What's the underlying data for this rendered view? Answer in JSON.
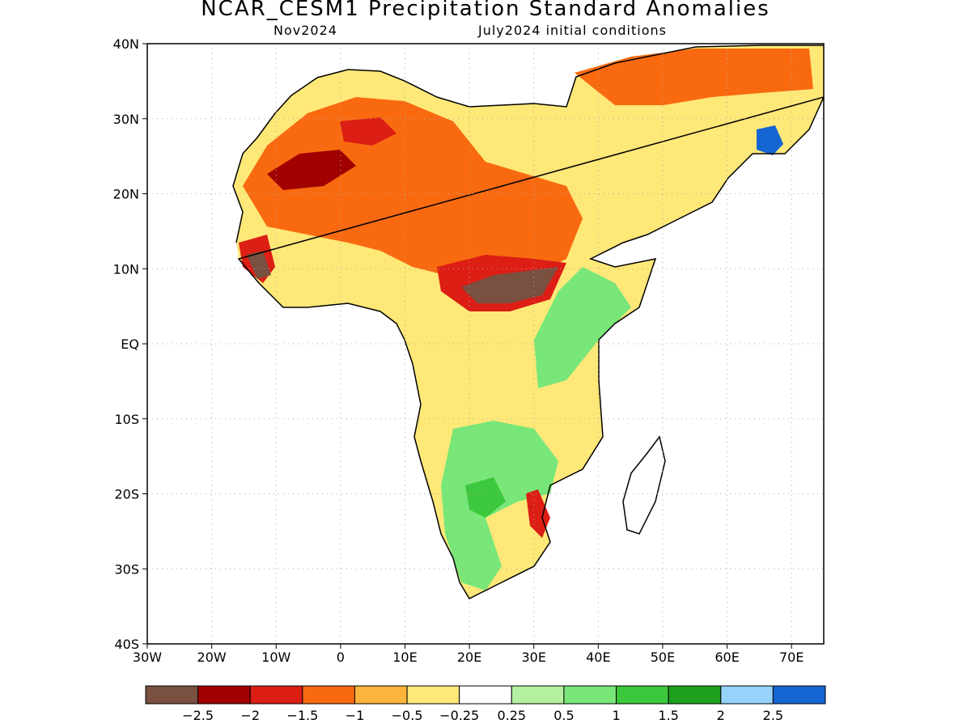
{
  "title": "NCAR_CESM1 Precipitation Standard Anomalies",
  "subtitle_left": "Nov2024",
  "subtitle_right": "July2024 initial conditions",
  "map": {
    "lon_range": [
      -30,
      75
    ],
    "lat_range": [
      -40,
      40
    ],
    "lat_ticks": [
      {
        "value": 40,
        "label": "40N"
      },
      {
        "value": 30,
        "label": "30N"
      },
      {
        "value": 20,
        "label": "20N"
      },
      {
        "value": 10,
        "label": "10N"
      },
      {
        "value": 0,
        "label": "EQ"
      },
      {
        "value": -10,
        "label": "10S"
      },
      {
        "value": -20,
        "label": "20S"
      },
      {
        "value": -30,
        "label": "30S"
      },
      {
        "value": -40,
        "label": "40S"
      }
    ],
    "lon_ticks": [
      {
        "value": -30,
        "label": "30W"
      },
      {
        "value": -20,
        "label": "20W"
      },
      {
        "value": -10,
        "label": "10W"
      },
      {
        "value": 0,
        "label": "0"
      },
      {
        "value": 10,
        "label": "10E"
      },
      {
        "value": 20,
        "label": "20E"
      },
      {
        "value": 30,
        "label": "30E"
      },
      {
        "value": 40,
        "label": "40E"
      },
      {
        "value": 50,
        "label": "50E"
      },
      {
        "value": 60,
        "label": "60E"
      },
      {
        "value": 70,
        "label": "70E"
      }
    ],
    "grid": "dotted"
  },
  "colorbar": {
    "colors": [
      "#7a5040",
      "#a00000",
      "#dc1e14",
      "#f96a10",
      "#fdb43c",
      "#fee878",
      "#ffffff",
      "#b4f0a0",
      "#78e678",
      "#3cc83c",
      "#1ea01e",
      "#96d2fa",
      "#1464d2"
    ],
    "labels": [
      "−2.5",
      "−2",
      "−1.5",
      "−1",
      "−0.5",
      "−0.25",
      "0.25",
      "0.5",
      "1",
      "1.5",
      "2",
      "2.5"
    ]
  }
}
